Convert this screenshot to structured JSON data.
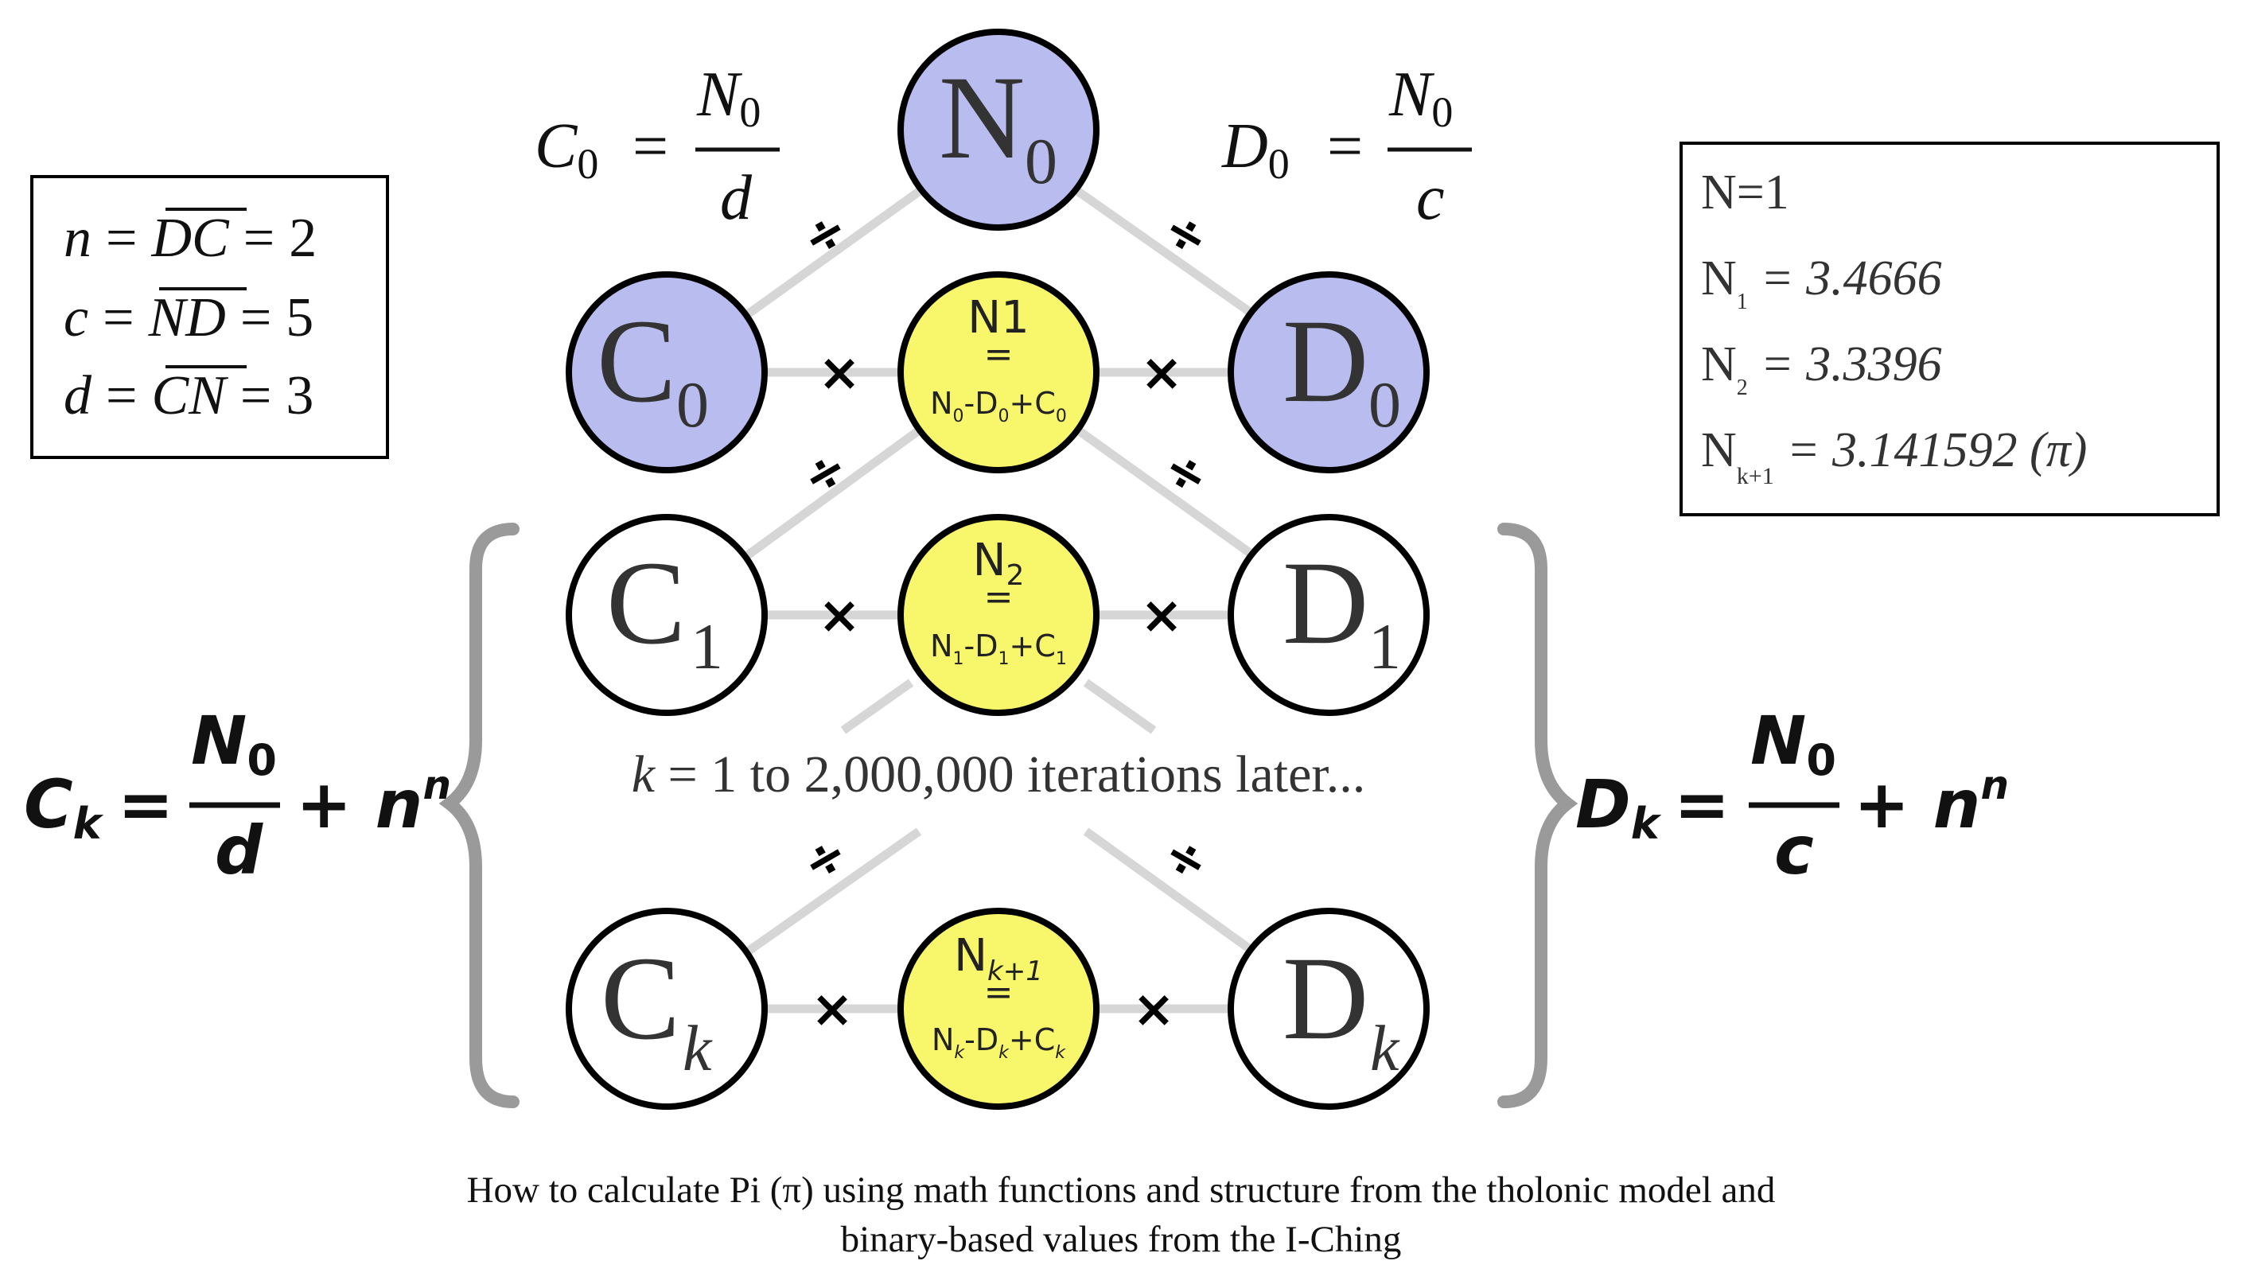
{
  "colors": {
    "blue_node": "#b8bcee",
    "yellow_node": "#f8f66a",
    "white_node": "#ffffff",
    "stroke": "#000000",
    "connector": "#d6d6d6",
    "brace": "#9a9a9a"
  },
  "params_box": {
    "rows": [
      {
        "var": "n",
        "bar": "DC",
        "value": "2"
      },
      {
        "var": "c",
        "bar": "ND",
        "value": "5"
      },
      {
        "var": "d",
        "bar": "CN",
        "value": "3"
      }
    ],
    "eq": "="
  },
  "results_box": {
    "r0": "N=1",
    "r1_base": "N",
    "r1_sub": "1",
    "r1_val": "= 3.4666",
    "r2_base": "N",
    "r2_sub": "2",
    "r2_val": "= 3.3396",
    "r3_base": "N",
    "r3_sub": "k+1",
    "r3_val": "= 3.141592 (π)"
  },
  "formulas": {
    "c0_lhs": "C",
    "c0_sub": "0",
    "c0_num": "N",
    "c0_num_sub": "0",
    "c0_den": "d",
    "d0_lhs": "D",
    "d0_sub": "0",
    "d0_num": "N",
    "d0_num_sub": "0",
    "d0_den": "c",
    "ck_lhs": "C",
    "ck_sub": "k",
    "ck_num": "N",
    "ck_num_sub": "0",
    "ck_den": "d",
    "ck_tail": "+ n",
    "ck_exp": "n",
    "dk_lhs": "D",
    "dk_sub": "k",
    "dk_num": "N",
    "dk_num_sub": "0",
    "dk_den": "c",
    "dk_tail": "+ n",
    "dk_exp": "n",
    "eq": "="
  },
  "nodes": {
    "n0": {
      "letter": "N",
      "sub": "0"
    },
    "c0": {
      "letter": "C",
      "sub": "0"
    },
    "d0": {
      "letter": "D",
      "sub": "0"
    },
    "c1": {
      "letter": "C",
      "sub": "1"
    },
    "d1": {
      "letter": "D",
      "sub": "1"
    },
    "ck": {
      "letter": "C",
      "sub": "k"
    },
    "dk": {
      "letter": "D",
      "sub": "k"
    },
    "y1": {
      "top": "N1",
      "eq": "=",
      "f_n": "N",
      "f_n_sub": "0",
      "f_d": "-D",
      "f_d_sub": "0",
      "f_c": "+C",
      "f_c_sub": "0"
    },
    "y2": {
      "top": "N",
      "top_sub": "2",
      "eq": "=",
      "f_n": "N",
      "f_n_sub": "1",
      "f_d": "-D",
      "f_d_sub": "1",
      "f_c": "+C",
      "f_c_sub": "1"
    },
    "yk": {
      "top": "N",
      "top_sub": "k+1",
      "eq": "=",
      "f_n": "N",
      "f_n_sub": "k",
      "f_d": "-D",
      "f_d_sub": "k",
      "f_c": "+C",
      "f_c_sub": "k"
    }
  },
  "operators": {
    "times": "×",
    "divide": "÷"
  },
  "iteration": {
    "k": "k",
    "text": " = 1 to 2,000,000 iterations later..."
  },
  "caption": {
    "line1": "How to calculate Pi (π) using math functions and structure from the tholonic model and",
    "line2": "binary-based values from the I-Ching"
  }
}
